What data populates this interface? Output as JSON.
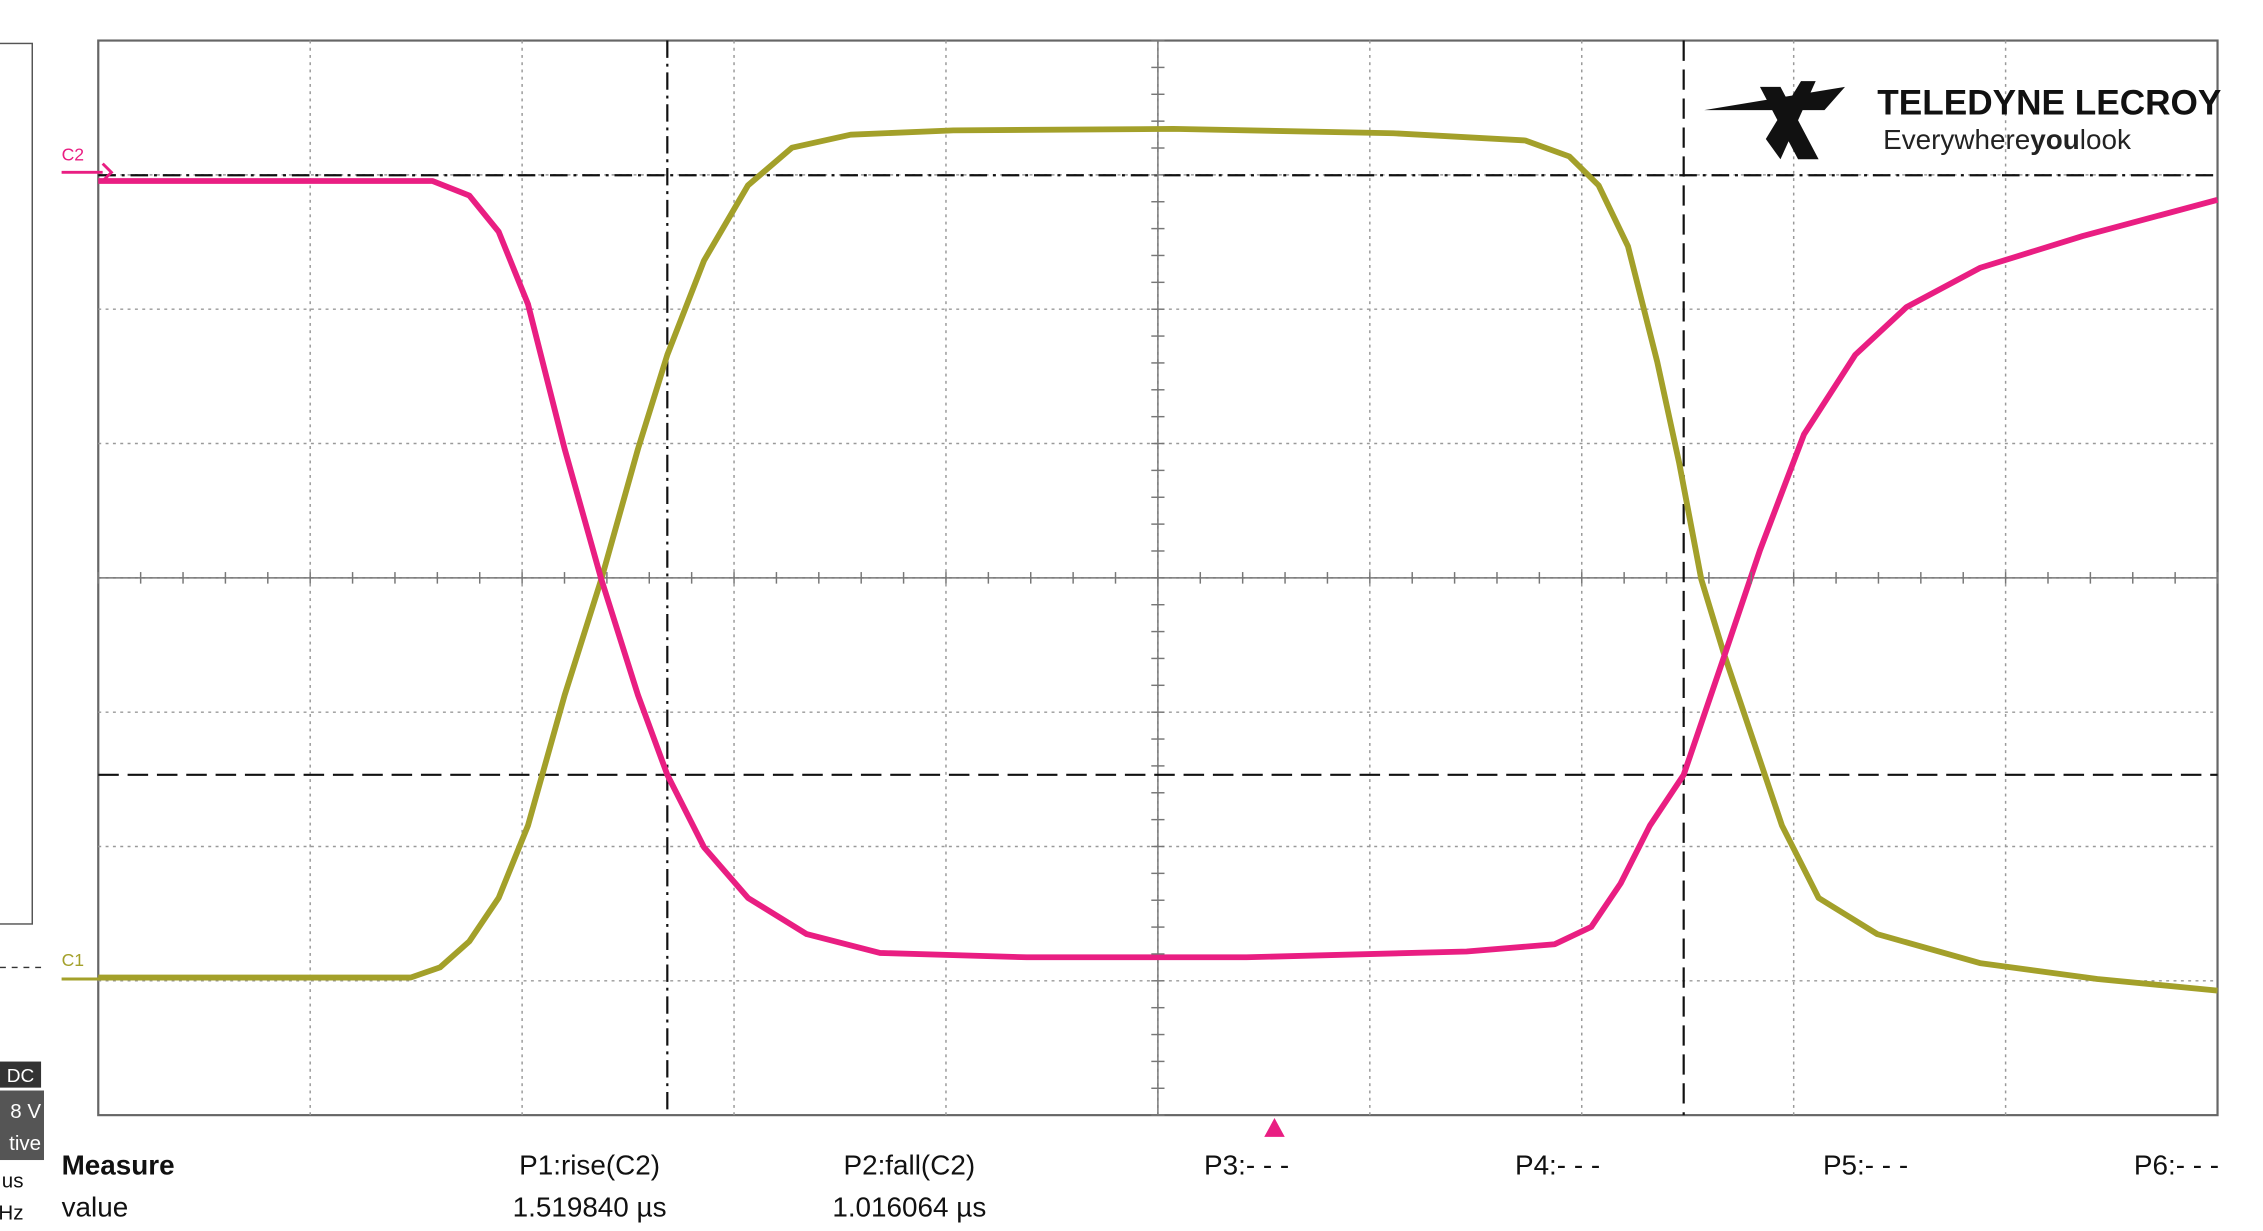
{
  "channels": {
    "c2": "C2",
    "c1": "C1"
  },
  "logo": {
    "brand": "TELEDYNE LECROY",
    "tagline": [
      "Everywhere",
      "you",
      "look"
    ]
  },
  "side_panel": [
    "DC",
    "8 V",
    "tive",
    "us",
    "Hz"
  ],
  "measure": {
    "header": [
      "Measure",
      "P1:rise(C2)",
      "P2:fall(C2)",
      "P3:- - -",
      "P4:- - -",
      "P5:- - -",
      "P6:- - -"
    ],
    "rows": [
      [
        "value",
        "1.519840 µs",
        "1.016064 µs"
      ]
    ]
  }
}
